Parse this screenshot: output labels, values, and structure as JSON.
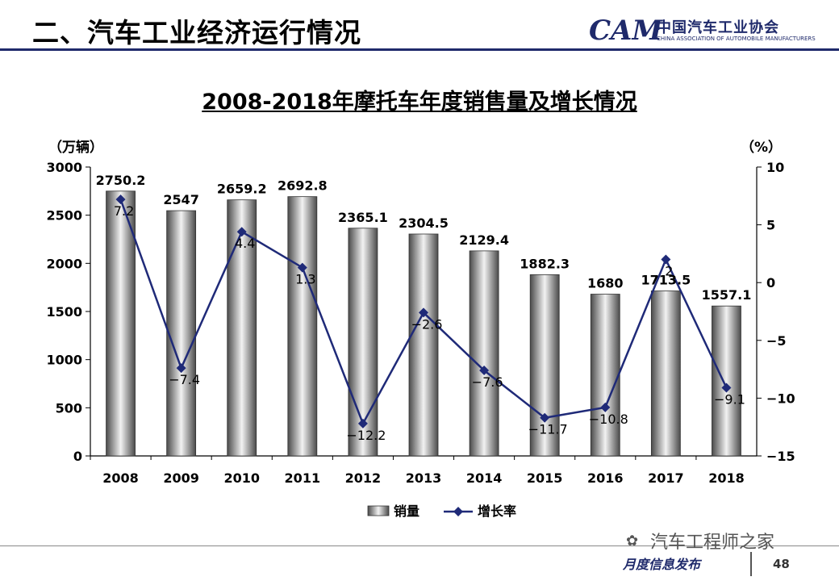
{
  "header": {
    "title": "二、汽车工业经济运行情况"
  },
  "logo": {
    "mark": "CAM",
    "name_cn": "中国汽车工业协会",
    "name_en": "CHINA ASSOCIATION OF AUTOMOBILE MANUFACTURERS"
  },
  "footer": {
    "label": "月度信息发布",
    "page": "48",
    "watermark": "汽车工程师之家"
  },
  "colors": {
    "line": "#1f2a78",
    "accent": "#1f2a6b"
  },
  "chart_data": {
    "type": "bar",
    "title": "2008-2018年摩托车年度销售量及增长情况",
    "ylabel_left": "（万辆）",
    "ylabel_right": "（%）",
    "categories": [
      "2008",
      "2009",
      "2010",
      "2011",
      "2012",
      "2013",
      "2014",
      "2015",
      "2016",
      "2017",
      "2018"
    ],
    "ylim_left": [
      0,
      3000
    ],
    "ylim_right": [
      -15,
      10
    ],
    "yticks_left": [
      "3000",
      "2500",
      "2000",
      "1500",
      "1000",
      "500",
      "0"
    ],
    "yticks_right": [
      "10",
      "5",
      "0",
      "−5",
      "−10",
      "−15"
    ],
    "series": [
      {
        "name": "销量",
        "type": "bar",
        "values": [
          2750.2,
          2547,
          2659.2,
          2692.8,
          2365.1,
          2304.5,
          2129.4,
          1882.3,
          1680,
          1713.5,
          1557.1
        ],
        "labels": [
          "2750.2",
          "2547",
          "2659.2",
          "2692.8",
          "2365.1",
          "2304.5",
          "2129.4",
          "1882.3",
          "1680",
          "1713.5",
          "1557.1"
        ]
      },
      {
        "name": "增长率",
        "type": "line",
        "axis": "right",
        "values": [
          7.2,
          -7.4,
          4.4,
          1.3,
          -12.2,
          -2.6,
          -7.6,
          -11.7,
          -10.8,
          2,
          -9.1
        ],
        "labels": [
          "7.2",
          "−7.4",
          "4.4",
          "1.3",
          "−12.2",
          "−2.6",
          "−7.6",
          "−11.7",
          "−10.8",
          "2",
          "−9.1"
        ]
      }
    ],
    "legend": "bottom-center",
    "grid": false
  }
}
